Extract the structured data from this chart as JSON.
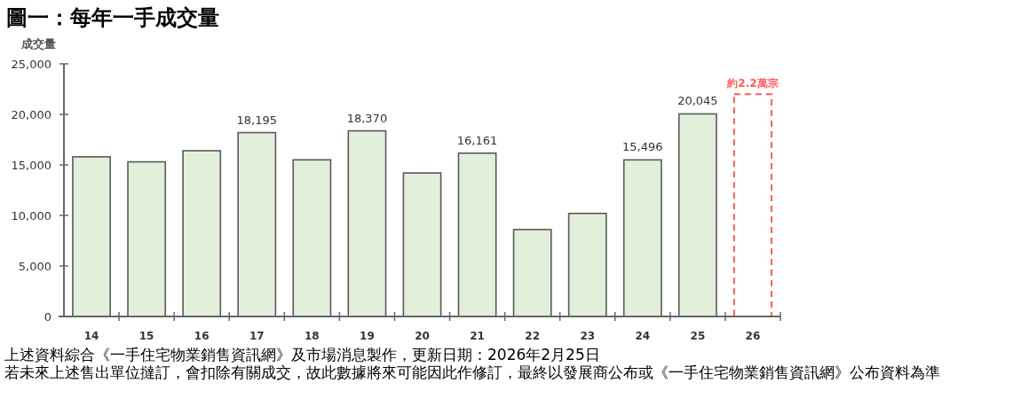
{
  "chart_data": {
    "type": "bar",
    "title": "圖一：每年一手成交量",
    "ylabel": "成交量",
    "categories": [
      "14",
      "15",
      "16",
      "17",
      "18",
      "19",
      "20",
      "21",
      "22",
      "23",
      "24",
      "25",
      "26"
    ],
    "series": [
      {
        "color": "#e2efda",
        "values": [
          15800,
          15300,
          16400,
          18195,
          15500,
          18370,
          14200,
          16161,
          8600,
          10200,
          15496,
          20045,
          null
        ],
        "value_labels": [
          null,
          null,
          null,
          "18,195",
          null,
          "18,370",
          null,
          "16,161",
          null,
          null,
          "15,496",
          "20,045",
          null
        ]
      },
      {
        "color": "#ff5a5a",
        "line_style": "dashed",
        "values": [
          null,
          null,
          null,
          null,
          null,
          null,
          null,
          null,
          null,
          null,
          null,
          null,
          22000
        ],
        "value_labels": [
          null,
          null,
          null,
          null,
          null,
          null,
          null,
          null,
          null,
          null,
          null,
          null,
          "約2.2萬宗"
        ]
      }
    ],
    "ylim": [
      0,
      25000
    ],
    "yticks": [
      0,
      {
        "value": 5000,
        "label": "5,000"
      },
      {
        "value": 10000,
        "label": "10,000"
      },
      {
        "value": 15000,
        "label": "15,000"
      },
      {
        "value": 20000,
        "label": "20,000"
      },
      {
        "value": 25000,
        "label": "25,000"
      }
    ],
    "annotations": [
      "上述資料綜合《一手住宅物業銷售資訊網》及市場消息製作，更新日期：2026年2月25日",
      "若未來上述售出單位撻訂，會扣除有關成交，故此數據將來可能因此作修訂，最終以發展商公布或《一手住宅物業銷售資訊網》公布資料為準"
    ]
  }
}
